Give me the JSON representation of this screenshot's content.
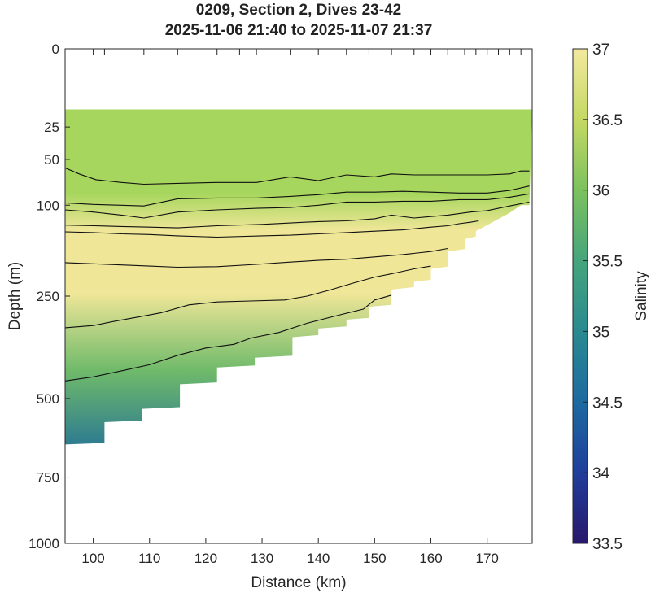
{
  "chart_data": {
    "type": "heatmap",
    "title": "0209, Section 2, Dives 23-42",
    "subtitle": "2025-11-06 21:40 to 2025-11-07 21:37",
    "xlabel": "Distance (km)",
    "ylabel": "Depth (m)",
    "colorbar_label": "Salinity",
    "xlim": [
      95,
      178
    ],
    "x_ticks": [
      100,
      110,
      120,
      130,
      140,
      150,
      160,
      170
    ],
    "y_ticks": [
      0,
      25,
      50,
      100,
      250,
      500,
      750,
      1000
    ],
    "y_scale": "sqrt",
    "y_reversed": true,
    "colorbar_ticks": [
      33.5,
      34,
      34.5,
      35,
      35.5,
      36,
      36.5,
      37
    ],
    "clim": [
      33.5,
      37
    ],
    "colormap": "haline",
    "colorbar_colors": [
      "#29186b",
      "#1f3e9b",
      "#1d6aa0",
      "#2a8a91",
      "#45a57c",
      "#7cc15e",
      "#c4d963",
      "#f3e99f"
    ],
    "top_tick_x": [
      95,
      100,
      102,
      109,
      115,
      122,
      126,
      129,
      135,
      140,
      145,
      149,
      153,
      157,
      160,
      163,
      166,
      168,
      170,
      172,
      174,
      176
    ],
    "data_top_depth": 15,
    "section_colors": {
      "surface": "#a6d65d",
      "core": "#efe698",
      "deep": "#2e7c90"
    },
    "bottom_profile": {
      "x": [
        95,
        102,
        102,
        108.7,
        108.7,
        115.4,
        115.4,
        122,
        122,
        128.7,
        128.7,
        135.4,
        135.4,
        140,
        140,
        145,
        145,
        149,
        149,
        153,
        153,
        157,
        157,
        160,
        160,
        163,
        163,
        166,
        166,
        168,
        168,
        174,
        176,
        177.5
      ],
      "depth": [
        640,
        635,
        570,
        565,
        530,
        525,
        460,
        455,
        415,
        410,
        390,
        385,
        340,
        335,
        320,
        315,
        300,
        296,
        272,
        268,
        237,
        232,
        222,
        218,
        198,
        194,
        168,
        164,
        148,
        144,
        136,
        110,
        100,
        100
      ]
    },
    "contours": [
      {
        "x": [
          95,
          97.5,
          100.5,
          105,
          109,
          115,
          122,
          129,
          135,
          140,
          145,
          150,
          153,
          157,
          160,
          165,
          170,
          174,
          176,
          177.5
        ],
        "depth": [
          58,
          64,
          70,
          73,
          75,
          74,
          73,
          73,
          67,
          71,
          65,
          67,
          64,
          65,
          65,
          65,
          65,
          64,
          61,
          61
        ]
      },
      {
        "x": [
          95,
          100,
          105,
          109,
          115,
          122,
          129,
          135,
          140,
          145,
          150,
          155,
          160,
          165,
          170,
          174,
          177.5
        ],
        "depth": [
          97,
          99,
          100,
          101,
          92,
          91,
          91,
          89,
          87,
          84,
          84,
          83,
          84,
          85,
          85,
          82,
          77
        ]
      },
      {
        "x": [
          95,
          100,
          105,
          109,
          115,
          122,
          129,
          135,
          140,
          145,
          150,
          155,
          160,
          165,
          170,
          174,
          177.5
        ],
        "depth": [
          106,
          109,
          113,
          117,
          109,
          106,
          104,
          103,
          100,
          96,
          96,
          95,
          95,
          93,
          93,
          90,
          86
        ]
      },
      {
        "x": [
          95,
          100,
          105,
          110,
          115,
          122,
          130,
          140,
          145,
          150,
          153,
          157,
          160,
          163,
          165,
          167,
          170,
          174,
          177.5
        ],
        "depth": [
          127,
          128,
          129,
          130,
          131,
          128,
          126,
          122,
          121,
          118,
          113,
          117,
          115,
          113,
          111,
          109,
          107,
          101,
          96
        ]
      },
      {
        "x": [
          95,
          100,
          105,
          110,
          115,
          122,
          130,
          135,
          140,
          145,
          150,
          155,
          160,
          163,
          165,
          167,
          168.5
        ],
        "depth": [
          137,
          138,
          140,
          141,
          143,
          145,
          143,
          142,
          140,
          138,
          136,
          134,
          130,
          128,
          125,
          123,
          121
        ]
      },
      {
        "x": [
          95,
          100,
          105,
          110,
          115,
          122,
          129,
          135,
          140,
          145,
          150,
          155,
          160,
          163
        ],
        "depth": [
          187,
          189,
          191,
          193,
          195,
          194,
          190,
          186,
          183,
          181,
          177,
          173,
          168,
          163
        ]
      },
      {
        "x": [
          95,
          100,
          104,
          108,
          112,
          117,
          122,
          128,
          134,
          138,
          142,
          146,
          150,
          153,
          157,
          160
        ],
        "depth": [
          318,
          313,
          303,
          294,
          285,
          268,
          262,
          260,
          258,
          250,
          238,
          225,
          213,
          207,
          198,
          193
        ]
      },
      {
        "x": [
          95,
          100,
          105,
          110,
          115,
          120,
          125,
          128,
          133,
          138,
          143,
          148,
          150,
          153
        ],
        "depth": [
          451,
          440,
          424,
          408,
          384,
          366,
          357,
          342,
          329,
          308,
          292,
          277,
          258,
          248
        ]
      }
    ]
  }
}
